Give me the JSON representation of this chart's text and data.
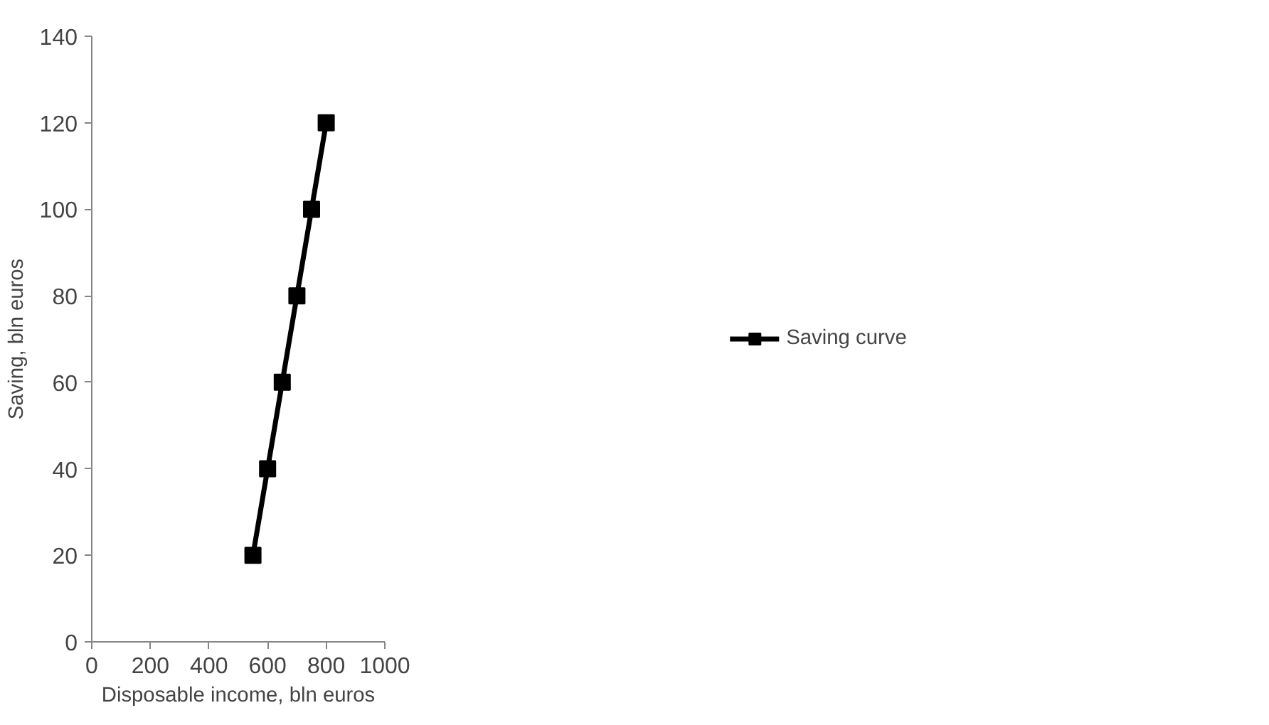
{
  "chart_data": {
    "type": "line",
    "xlabel": "Disposable income, bln euros",
    "ylabel": "Saving, bln euros",
    "x": [
      550,
      600,
      650,
      700,
      750,
      800
    ],
    "series": [
      {
        "name": "Saving curve",
        "color": "#000000",
        "values": [
          20,
          40,
          60,
          80,
          100,
          120
        ]
      }
    ],
    "xlim": [
      0,
      1000
    ],
    "xticks": [
      0,
      200,
      400,
      600,
      800,
      1000
    ],
    "ylim": [
      0,
      140
    ],
    "yticks": [
      0,
      20,
      40,
      60,
      80,
      100,
      120,
      140
    ],
    "grid": false,
    "legend": "right",
    "marker": "square",
    "line_style": "solid"
  }
}
